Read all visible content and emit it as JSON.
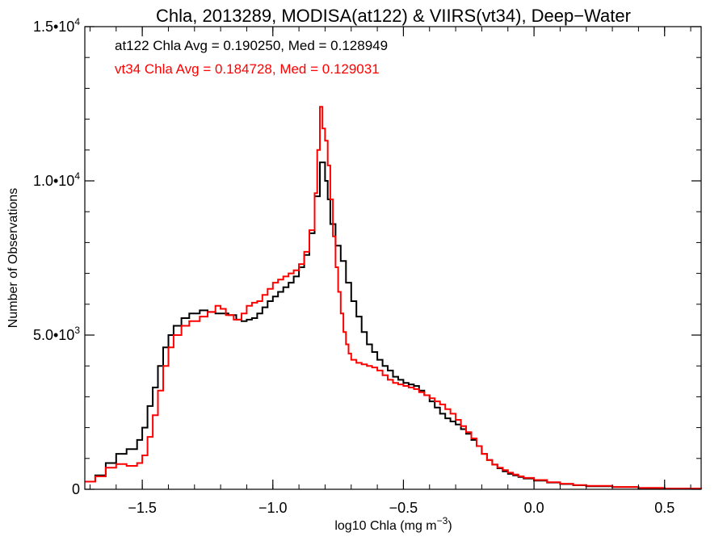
{
  "chart_data": {
    "type": "line",
    "title": "Chla, 2013289, MODISA(at122) & VIIRS(vt34), Deep−Water",
    "xlabel": "log10 Chla (mg m",
    "xlabel_sup": "−3",
    "xlabel_close": ")",
    "ylabel": "Number of Observations",
    "xlim": [
      -1.72,
      0.64
    ],
    "ylim": [
      0,
      15000
    ],
    "xticks": [
      {
        "value": -1.5,
        "label": "−1.5"
      },
      {
        "value": -1.0,
        "label": "−1.0"
      },
      {
        "value": -0.5,
        "label": "−0.5"
      },
      {
        "value": 0.0,
        "label": "0.0"
      },
      {
        "value": 0.5,
        "label": "0.5"
      }
    ],
    "yticks": [
      {
        "value": 0,
        "label": "0",
        "sup": ""
      },
      {
        "value": 5000,
        "label": "5.0•10",
        "sup": "3"
      },
      {
        "value": 10000,
        "label": "1.0•10",
        "sup": "4"
      },
      {
        "value": 15000,
        "label": "1.5•10",
        "sup": "4"
      }
    ],
    "x_minor_step": 0.1,
    "y_minor_step": 1000,
    "grid": false,
    "annotations": [
      {
        "text": "at122 Chla Avg = 0.190250, Med = 0.128949",
        "color": "#000000"
      },
      {
        "text": "vt34 Chla Avg = 0.184728, Med = 0.129031",
        "color": "#ff0000"
      }
    ],
    "series": [
      {
        "color": "#000000",
        "points": [
          [
            -1.72,
            250
          ],
          [
            -1.68,
            450
          ],
          [
            -1.64,
            850
          ],
          [
            -1.6,
            1150
          ],
          [
            -1.56,
            1300
          ],
          [
            -1.52,
            1600
          ],
          [
            -1.5,
            2000
          ],
          [
            -1.48,
            2700
          ],
          [
            -1.46,
            3300
          ],
          [
            -1.44,
            4000
          ],
          [
            -1.42,
            4600
          ],
          [
            -1.4,
            5000
          ],
          [
            -1.38,
            5300
          ],
          [
            -1.35,
            5550
          ],
          [
            -1.32,
            5700
          ],
          [
            -1.28,
            5800
          ],
          [
            -1.25,
            5750
          ],
          [
            -1.22,
            5700
          ],
          [
            -1.2,
            5700
          ],
          [
            -1.17,
            5650
          ],
          [
            -1.14,
            5500
          ],
          [
            -1.12,
            5450
          ],
          [
            -1.1,
            5500
          ],
          [
            -1.08,
            5550
          ],
          [
            -1.06,
            5700
          ],
          [
            -1.04,
            5900
          ],
          [
            -1.02,
            6100
          ],
          [
            -1.0,
            6250
          ],
          [
            -0.98,
            6400
          ],
          [
            -0.96,
            6550
          ],
          [
            -0.94,
            6700
          ],
          [
            -0.92,
            6900
          ],
          [
            -0.9,
            7200
          ],
          [
            -0.88,
            7600
          ],
          [
            -0.86,
            8300
          ],
          [
            -0.84,
            9500
          ],
          [
            -0.82,
            10600
          ],
          [
            -0.8,
            10000
          ],
          [
            -0.79,
            9400
          ],
          [
            -0.78,
            8600
          ],
          [
            -0.76,
            7900
          ],
          [
            -0.74,
            7400
          ],
          [
            -0.72,
            6700
          ],
          [
            -0.7,
            6100
          ],
          [
            -0.68,
            5600
          ],
          [
            -0.66,
            5100
          ],
          [
            -0.64,
            4700
          ],
          [
            -0.62,
            4450
          ],
          [
            -0.6,
            4200
          ],
          [
            -0.58,
            4000
          ],
          [
            -0.56,
            3850
          ],
          [
            -0.54,
            3650
          ],
          [
            -0.52,
            3550
          ],
          [
            -0.5,
            3450
          ],
          [
            -0.48,
            3400
          ],
          [
            -0.46,
            3350
          ],
          [
            -0.44,
            3200
          ],
          [
            -0.42,
            3050
          ],
          [
            -0.4,
            2850
          ],
          [
            -0.38,
            2650
          ],
          [
            -0.36,
            2450
          ],
          [
            -0.34,
            2300
          ],
          [
            -0.32,
            2200
          ],
          [
            -0.3,
            2100
          ],
          [
            -0.28,
            1950
          ],
          [
            -0.26,
            1800
          ],
          [
            -0.24,
            1600
          ],
          [
            -0.22,
            1400
          ],
          [
            -0.2,
            1150
          ],
          [
            -0.18,
            950
          ],
          [
            -0.16,
            800
          ],
          [
            -0.14,
            680
          ],
          [
            -0.12,
            580
          ],
          [
            -0.1,
            500
          ],
          [
            -0.08,
            450
          ],
          [
            -0.06,
            400
          ],
          [
            -0.04,
            350
          ],
          [
            0.0,
            280
          ],
          [
            0.05,
            220
          ],
          [
            0.1,
            170
          ],
          [
            0.15,
            130
          ],
          [
            0.2,
            100
          ],
          [
            0.3,
            70
          ],
          [
            0.4,
            40
          ],
          [
            0.5,
            25
          ],
          [
            0.64,
            15
          ]
        ]
      },
      {
        "color": "#ff0000",
        "points": [
          [
            -1.72,
            250
          ],
          [
            -1.68,
            420
          ],
          [
            -1.64,
            700
          ],
          [
            -1.6,
            820
          ],
          [
            -1.56,
            760
          ],
          [
            -1.52,
            850
          ],
          [
            -1.5,
            1100
          ],
          [
            -1.48,
            1700
          ],
          [
            -1.46,
            2400
          ],
          [
            -1.44,
            3200
          ],
          [
            -1.42,
            4000
          ],
          [
            -1.4,
            4600
          ],
          [
            -1.38,
            5000
          ],
          [
            -1.35,
            5300
          ],
          [
            -1.32,
            5450
          ],
          [
            -1.28,
            5600
          ],
          [
            -1.25,
            5750
          ],
          [
            -1.22,
            5950
          ],
          [
            -1.2,
            5850
          ],
          [
            -1.18,
            5650
          ],
          [
            -1.15,
            5500
          ],
          [
            -1.12,
            5700
          ],
          [
            -1.1,
            5950
          ],
          [
            -1.08,
            6050
          ],
          [
            -1.06,
            6100
          ],
          [
            -1.04,
            6300
          ],
          [
            -1.02,
            6500
          ],
          [
            -1.0,
            6700
          ],
          [
            -0.98,
            6800
          ],
          [
            -0.96,
            6900
          ],
          [
            -0.94,
            7000
          ],
          [
            -0.92,
            7100
          ],
          [
            -0.9,
            7300
          ],
          [
            -0.88,
            7700
          ],
          [
            -0.86,
            8400
          ],
          [
            -0.84,
            9600
          ],
          [
            -0.83,
            11000
          ],
          [
            -0.82,
            12400
          ],
          [
            -0.81,
            11700
          ],
          [
            -0.8,
            11300
          ],
          [
            -0.79,
            10500
          ],
          [
            -0.78,
            9400
          ],
          [
            -0.77,
            8200
          ],
          [
            -0.76,
            7200
          ],
          [
            -0.75,
            6400
          ],
          [
            -0.74,
            5700
          ],
          [
            -0.73,
            5100
          ],
          [
            -0.72,
            4700
          ],
          [
            -0.71,
            4400
          ],
          [
            -0.7,
            4200
          ],
          [
            -0.68,
            4100
          ],
          [
            -0.66,
            4050
          ],
          [
            -0.64,
            4000
          ],
          [
            -0.62,
            3950
          ],
          [
            -0.6,
            3850
          ],
          [
            -0.58,
            3700
          ],
          [
            -0.56,
            3550
          ],
          [
            -0.54,
            3450
          ],
          [
            -0.52,
            3400
          ],
          [
            -0.5,
            3350
          ],
          [
            -0.48,
            3300
          ],
          [
            -0.46,
            3250
          ],
          [
            -0.44,
            3150
          ],
          [
            -0.42,
            3050
          ],
          [
            -0.4,
            2950
          ],
          [
            -0.38,
            2850
          ],
          [
            -0.36,
            2750
          ],
          [
            -0.34,
            2600
          ],
          [
            -0.32,
            2450
          ],
          [
            -0.3,
            2250
          ],
          [
            -0.28,
            2050
          ],
          [
            -0.26,
            1850
          ],
          [
            -0.24,
            1650
          ],
          [
            -0.22,
            1400
          ],
          [
            -0.2,
            1150
          ],
          [
            -0.18,
            950
          ],
          [
            -0.16,
            800
          ],
          [
            -0.14,
            700
          ],
          [
            -0.12,
            620
          ],
          [
            -0.1,
            540
          ],
          [
            -0.08,
            480
          ],
          [
            -0.06,
            420
          ],
          [
            -0.04,
            370
          ],
          [
            0.0,
            300
          ],
          [
            0.05,
            230
          ],
          [
            0.1,
            180
          ],
          [
            0.15,
            140
          ],
          [
            0.2,
            110
          ],
          [
            0.3,
            75
          ],
          [
            0.4,
            45
          ],
          [
            0.5,
            25
          ],
          [
            0.64,
            15
          ]
        ]
      }
    ]
  }
}
